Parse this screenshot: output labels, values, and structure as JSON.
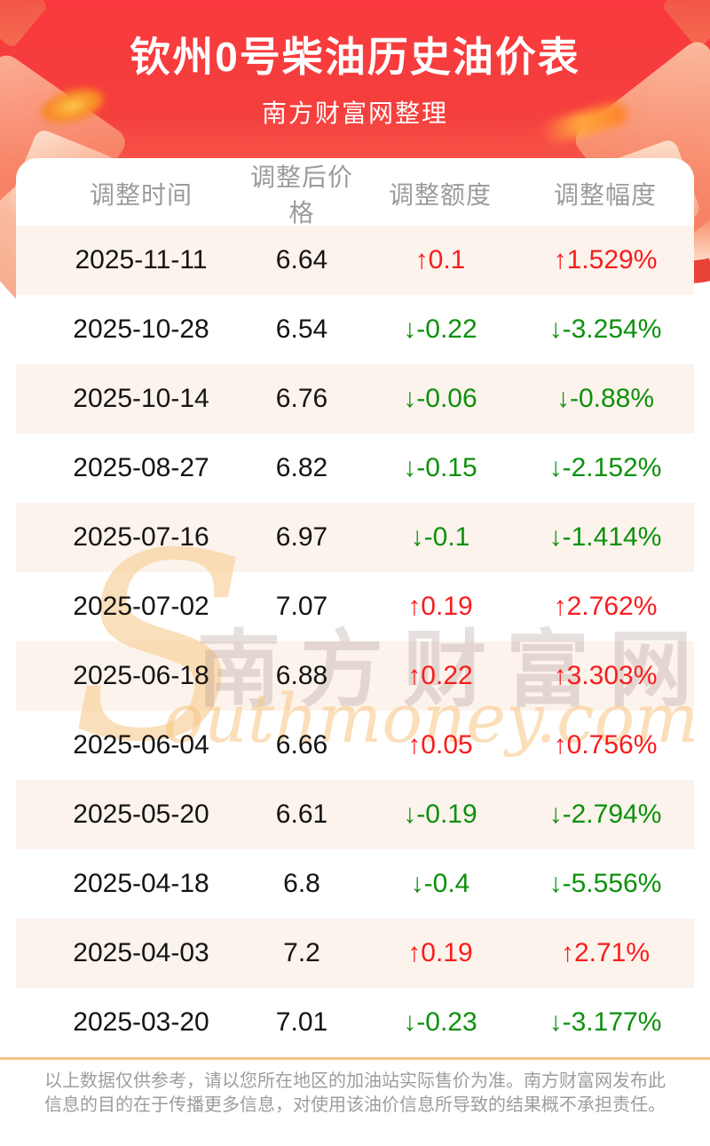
{
  "page": {
    "title": "钦州0号柴油历史油价表",
    "subtitle": "南方财富网整理"
  },
  "table": {
    "headers": [
      "调整时间",
      "调整后价格",
      "调整额度",
      "调整幅度"
    ],
    "rows": [
      {
        "date": "2025-11-11",
        "price": "6.64",
        "change": "↑0.1",
        "pct": "↑1.529%",
        "direction": "up"
      },
      {
        "date": "2025-10-28",
        "price": "6.54",
        "change": "↓-0.22",
        "pct": "↓-3.254%",
        "direction": "down"
      },
      {
        "date": "2025-10-14",
        "price": "6.76",
        "change": "↓-0.06",
        "pct": "↓-0.88%",
        "direction": "down"
      },
      {
        "date": "2025-08-27",
        "price": "6.82",
        "change": "↓-0.15",
        "pct": "↓-2.152%",
        "direction": "down"
      },
      {
        "date": "2025-07-16",
        "price": "6.97",
        "change": "↓-0.1",
        "pct": "↓-1.414%",
        "direction": "down"
      },
      {
        "date": "2025-07-02",
        "price": "7.07",
        "change": "↑0.19",
        "pct": "↑2.762%",
        "direction": "up"
      },
      {
        "date": "2025-06-18",
        "price": "6.88",
        "change": "↑0.22",
        "pct": "↑3.303%",
        "direction": "up"
      },
      {
        "date": "2025-06-04",
        "price": "6.66",
        "change": "↑0.05",
        "pct": "↑0.756%",
        "direction": "up"
      },
      {
        "date": "2025-05-20",
        "price": "6.61",
        "change": "↓-0.19",
        "pct": "↓-2.794%",
        "direction": "down"
      },
      {
        "date": "2025-04-18",
        "price": "6.8",
        "change": "↓-0.4",
        "pct": "↓-5.556%",
        "direction": "down"
      },
      {
        "date": "2025-04-03",
        "price": "7.2",
        "change": "↑0.19",
        "pct": "↑2.71%",
        "direction": "up"
      },
      {
        "date": "2025-03-20",
        "price": "7.01",
        "change": "↓-0.23",
        "pct": "↓-3.177%",
        "direction": "down"
      }
    ]
  },
  "watermark": {
    "initial": "S",
    "cn": "南方财富网",
    "en": "outhmoney.com"
  },
  "footer": {
    "disclaimer": "以上数据仅供参考，请以您所在地区的加油站实际售价为准。南方财富网发布此信息的目的在于传播更多信息，对使用该油价信息所导致的结果概不承担责任。"
  },
  "colors": {
    "up": "#f81d1d",
    "down": "#0c910c",
    "hero_red": "#f9393d",
    "row_alt": "#fcf3ec",
    "divider": "#f6c28a",
    "header_text": "#9b9b9b"
  },
  "chart_data": {
    "type": "table",
    "title": "钦州0号柴油历史油价表",
    "columns": [
      "调整时间",
      "调整后价格",
      "调整额度",
      "调整幅度"
    ],
    "rows": [
      [
        "2025-11-11",
        6.64,
        0.1,
        1.529
      ],
      [
        "2025-10-28",
        6.54,
        -0.22,
        -3.254
      ],
      [
        "2025-10-14",
        6.76,
        -0.06,
        -0.88
      ],
      [
        "2025-08-27",
        6.82,
        -0.15,
        -2.152
      ],
      [
        "2025-07-16",
        6.97,
        -0.1,
        -1.414
      ],
      [
        "2025-07-02",
        7.07,
        0.19,
        2.762
      ],
      [
        "2025-06-18",
        6.88,
        0.22,
        3.303
      ],
      [
        "2025-06-04",
        6.66,
        0.05,
        0.756
      ],
      [
        "2025-05-20",
        6.61,
        -0.19,
        -2.794
      ],
      [
        "2025-04-18",
        6.8,
        -0.4,
        -5.556
      ],
      [
        "2025-04-03",
        7.2,
        0.19,
        2.71
      ],
      [
        "2025-03-20",
        7.01,
        -0.23,
        -3.177
      ]
    ]
  }
}
